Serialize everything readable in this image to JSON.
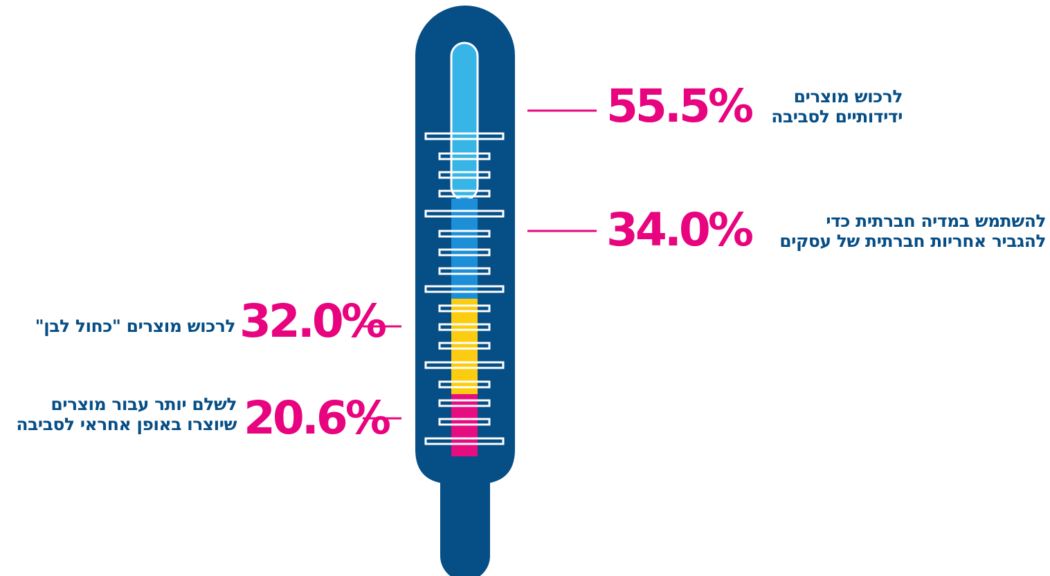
{
  "colors": {
    "thermometer_body": "#064e86",
    "tick": "#ffffff",
    "text_navy": "#064e86",
    "percent_pink": "#e8037f",
    "connector_pink": "#e8037f",
    "segment_light_blue": "#36b5e6",
    "segment_blue": "#1c8fd8",
    "segment_yellow": "#fccc10",
    "segment_magenta": "#e50d7f"
  },
  "stats": [
    {
      "id": "eco-products",
      "percent": "55.5%",
      "value": 55.5,
      "label_lines": [
        "לרכוש מוצרים",
        "ידידותיים לסביבה"
      ],
      "color_key": "segment_light_blue"
    },
    {
      "id": "social-media",
      "percent": "34.0%",
      "value": 34.0,
      "label_lines": [
        "להשתמש במדיה חברתית כדי",
        "להגביר אחריות חברתית של עסקים"
      ],
      "color_key": "segment_blue"
    },
    {
      "id": "blue-white",
      "percent": "32.0%",
      "value": 32.0,
      "label_lines": [
        "לרכוש מוצרים \"כחול לבן\""
      ],
      "color_key": "segment_yellow"
    },
    {
      "id": "pay-more",
      "percent": "20.6%",
      "value": 20.6,
      "label_lines": [
        "לשלם יותר עבור מוצרים",
        "שיוצרו באופן אחראי לסביבה"
      ],
      "color_key": "segment_magenta"
    }
  ]
}
